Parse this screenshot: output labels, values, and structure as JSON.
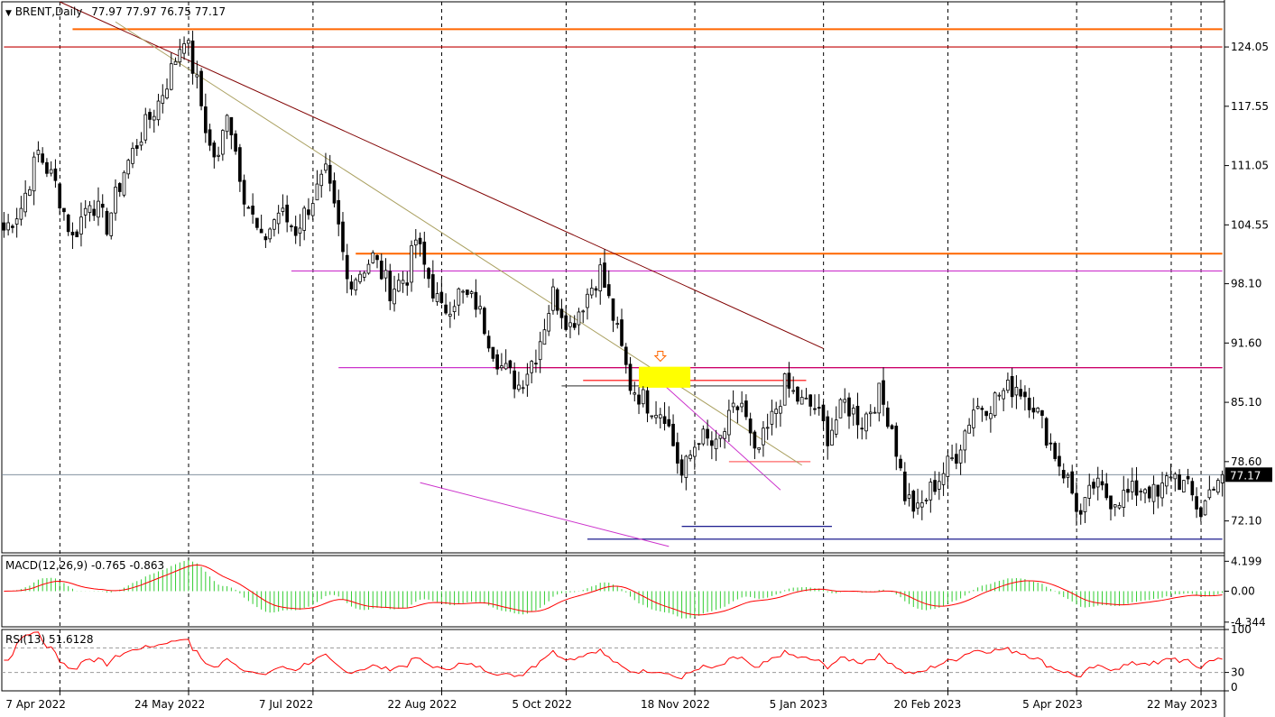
{
  "header": {
    "symbol_label": "BRENT,Daily",
    "ohlc_label": "77.97 77.97 76.75 77.17",
    "dropdown_glyph": "▼"
  },
  "price_box": "77.17",
  "macd": {
    "label": "MACD(12,26,9) -0.765 -0.863"
  },
  "rsi": {
    "label": "RSI(13) 51.6128"
  },
  "chart_data": {
    "type": "candlestick",
    "instrument": "BRENT",
    "timeframe": "Daily",
    "x_ticks": [
      "7 Apr 2022",
      "24 May 2022",
      "7 Jul 2022",
      "22 Aug 2022",
      "5 Oct 2022",
      "18 Nov 2022",
      "5 Jan 2023",
      "20 Feb 2023",
      "5 Apr 2023",
      "22 May 2023"
    ],
    "y_ticks": [
      "124.05",
      "117.55",
      "111.05",
      "104.55",
      "98.10",
      "91.60",
      "85.10",
      "78.60",
      "72.10"
    ],
    "ylim": [
      68.6,
      129.0
    ],
    "last_price": 77.17,
    "close_path": [
      [
        0,
        104
      ],
      [
        4,
        106.5
      ],
      [
        8,
        112.5
      ],
      [
        12,
        109
      ],
      [
        16,
        103
      ],
      [
        20,
        107.5
      ],
      [
        24,
        104.5
      ],
      [
        28,
        110.5
      ],
      [
        32,
        114.5
      ],
      [
        36,
        118
      ],
      [
        39,
        121.5
      ],
      [
        42,
        125.5
      ],
      [
        45,
        120
      ],
      [
        48,
        113
      ],
      [
        50,
        111.5
      ],
      [
        52,
        117.5
      ],
      [
        56,
        108
      ],
      [
        60,
        102.5
      ],
      [
        64,
        106
      ],
      [
        68,
        104
      ],
      [
        72,
        107.5
      ],
      [
        75,
        110
      ],
      [
        78,
        104
      ],
      [
        80,
        98.5
      ],
      [
        82,
        99
      ],
      [
        86,
        101
      ],
      [
        90,
        97.5
      ],
      [
        94,
        99
      ],
      [
        96,
        103
      ],
      [
        98,
        100
      ],
      [
        102,
        95
      ],
      [
        106,
        97
      ],
      [
        110,
        96
      ],
      [
        114,
        91
      ],
      [
        116,
        89
      ],
      [
        120,
        87
      ],
      [
        124,
        90.5
      ],
      [
        128,
        97
      ],
      [
        132,
        93.5
      ],
      [
        136,
        97
      ],
      [
        139,
        99.5
      ],
      [
        142,
        94.5
      ],
      [
        146,
        87
      ],
      [
        150,
        85
      ],
      [
        154,
        84
      ],
      [
        158,
        77
      ],
      [
        162,
        81.5
      ],
      [
        166,
        80
      ],
      [
        170,
        84
      ],
      [
        172,
        85
      ],
      [
        175,
        79
      ],
      [
        178,
        82
      ],
      [
        182,
        87
      ],
      [
        186,
        85
      ],
      [
        189,
        84.5
      ],
      [
        192,
        81.5
      ],
      [
        196,
        85
      ],
      [
        200,
        83
      ],
      [
        204,
        86
      ],
      [
        207,
        82.5
      ],
      [
        210,
        75
      ],
      [
        213,
        73
      ],
      [
        216,
        75.5
      ],
      [
        219,
        77.5
      ],
      [
        222,
        79.5
      ],
      [
        226,
        84.5
      ],
      [
        230,
        85
      ],
      [
        232,
        86
      ],
      [
        236,
        87
      ],
      [
        240,
        85
      ],
      [
        244,
        80.5
      ],
      [
        248,
        76.5
      ],
      [
        251,
        72.5
      ],
      [
        254,
        76
      ],
      [
        258,
        74.5
      ],
      [
        262,
        75
      ],
      [
        266,
        76
      ],
      [
        269,
        74.5
      ],
      [
        272,
        77.5
      ],
      [
        276,
        75.5
      ],
      [
        279,
        73
      ],
      [
        282,
        76.5
      ],
      [
        284,
        77.17
      ]
    ],
    "sample_days": 285,
    "macd": {
      "name": "MACD(12,26,9)",
      "main": -0.765,
      "signal": -0.863,
      "y_ticks": [
        "4.199",
        "0.00",
        "-4.344"
      ],
      "ylim": [
        -5.0,
        5.0
      ]
    },
    "rsi": {
      "name": "RSI(13)",
      "value": 51.6128,
      "y_ticks": [
        "100",
        "30",
        "0"
      ],
      "ylim": [
        0,
        100
      ],
      "levels": [
        70,
        30
      ]
    },
    "overlays": {
      "horizontal_levels": [
        {
          "price": 126.0,
          "color": "#ff6600",
          "style": "solid",
          "from_day": 16,
          "to_day": 285
        },
        {
          "price": 124.05,
          "color": "#c00000",
          "style": "solid",
          "from_day": 0,
          "to_day": 285
        },
        {
          "price": 101.4,
          "color": "#ff6600",
          "style": "solid",
          "from_day": 82,
          "to_day": 285
        },
        {
          "price": 99.5,
          "color": "#cc33cc",
          "style": "solid",
          "from_day": 67,
          "to_day": 285
        },
        {
          "price": 88.9,
          "color": "#cc33cc",
          "style": "solid",
          "from_day": 78,
          "to_day": 285
        },
        {
          "price": 88.9,
          "color": "#cc0066",
          "style": "solid",
          "from_day": 114,
          "to_day": 285
        },
        {
          "price": 87.5,
          "color": "#ff0000",
          "style": "solid",
          "from_day": 135,
          "to_day": 187
        },
        {
          "price": 86.9,
          "color": "#555555",
          "style": "solid",
          "from_day": 130,
          "to_day": 183
        },
        {
          "price": 78.6,
          "color": "#ff6666",
          "style": "solid",
          "from_day": 169,
          "to_day": 188
        },
        {
          "price": 71.5,
          "color": "#000080",
          "style": "solid",
          "from_day": 158,
          "to_day": 193
        },
        {
          "price": 70.1,
          "color": "#000080",
          "style": "solid",
          "from_day": 136,
          "to_day": 285
        }
      ],
      "trend_lines": [
        {
          "from": [
            13,
            129.0
          ],
          "to": [
            191,
            91.0
          ],
          "color": "#800000"
        },
        {
          "from": [
            26,
            126.8
          ],
          "to": [
            186,
            78.2
          ],
          "color": "#aaa060"
        },
        {
          "from": [
            97,
            76.3
          ],
          "to": [
            155,
            69.3
          ],
          "color": "#cc33cc"
        },
        {
          "from": [
            151,
            88.2
          ],
          "to": [
            181,
            75.5
          ],
          "color": "#cc33cc"
        }
      ],
      "highlight_zone": {
        "from_day": 148,
        "to_day": 160,
        "top": 89.0,
        "bottom": 86.7,
        "color": "#ffff00"
      },
      "arrow_marker": {
        "day": 153,
        "price": 90.0,
        "color": "#ff6600"
      },
      "current_price_line": {
        "price": 77.17,
        "color": "#708090"
      }
    },
    "colors": {
      "bull_body": "#ffffff",
      "bear_body": "#000000",
      "macd_histogram": "#32cd32",
      "macd_signal": "#ff0000",
      "rsi_line": "#ff0000",
      "grid_vertical": "#000000"
    }
  }
}
